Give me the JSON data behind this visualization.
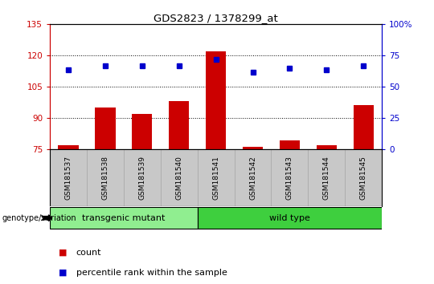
{
  "title": "GDS2823 / 1378299_at",
  "samples": [
    "GSM181537",
    "GSM181538",
    "GSM181539",
    "GSM181540",
    "GSM181541",
    "GSM181542",
    "GSM181543",
    "GSM181544",
    "GSM181545"
  ],
  "counts": [
    77,
    95,
    92,
    98,
    122,
    76,
    79,
    77,
    96
  ],
  "percentiles": [
    113,
    115,
    115,
    115,
    118,
    112,
    114,
    113,
    115
  ],
  "groups": [
    {
      "label": "transgenic mutant",
      "start": 0,
      "end": 4,
      "color": "#90ee90"
    },
    {
      "label": "wild type",
      "start": 4,
      "end": 9,
      "color": "#3ecf3e"
    }
  ],
  "ylim_left": [
    75,
    135
  ],
  "ylim_right": [
    0,
    100
  ],
  "yticks_left": [
    75,
    90,
    105,
    120,
    135
  ],
  "yticks_right": [
    0,
    25,
    50,
    75,
    100
  ],
  "bar_color": "#cc0000",
  "dot_color": "#0000cc",
  "bg_color": "#ffffff",
  "left_tick_color": "#cc0000",
  "right_tick_color": "#0000cc",
  "legend_count": "count",
  "legend_pct": "percentile rank within the sample",
  "genotype_label": "genotype/variation",
  "grid_dotted_at": [
    90,
    105,
    120
  ],
  "names_bg": "#c8c8c8",
  "group_border_color": "#000000"
}
